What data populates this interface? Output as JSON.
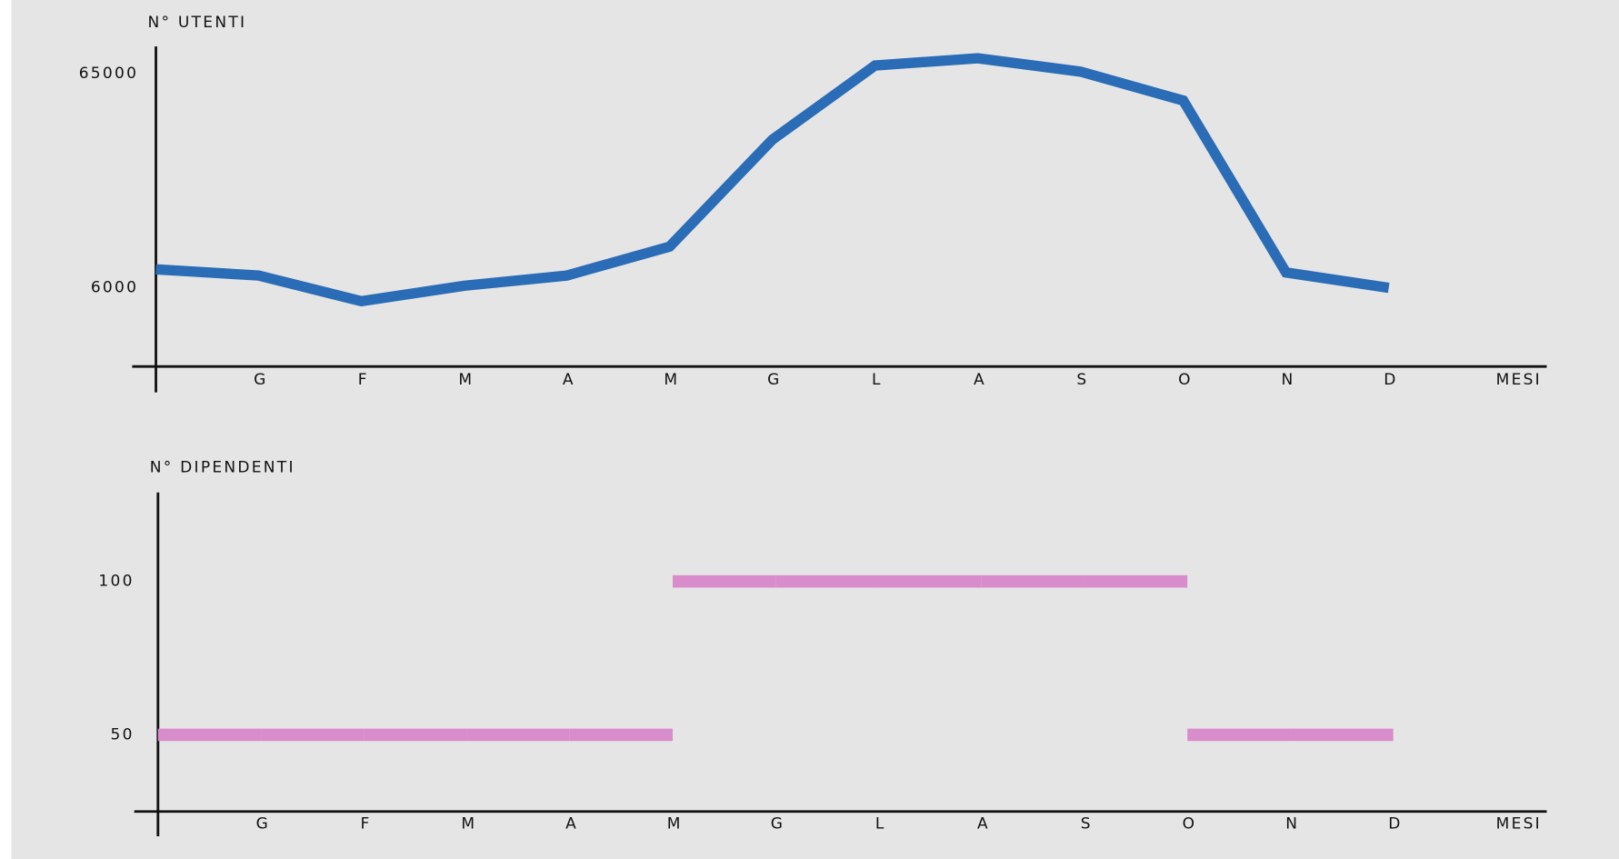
{
  "chart_data": [
    {
      "type": "line",
      "y_label": "N° UTENTI",
      "x_label": "MESI",
      "categories": [
        null,
        "G",
        "F",
        "M",
        "A",
        "M",
        "G",
        "L",
        "A",
        "S",
        "O",
        "N",
        "D"
      ],
      "values": [
        7370,
        6880,
        5170,
        6140,
        6880,
        9490,
        31200,
        71200,
        77200,
        66500,
        48200,
        7120,
        6000
      ],
      "color": "#2a6cb5",
      "log_scale": true,
      "grid": false,
      "ylim": [
        2500,
        88000
      ],
      "yticks": [
        6000,
        65000
      ]
    },
    {
      "type": "step",
      "y_label": "N° DIPENDENTI",
      "x_label": "MESI",
      "categories": [
        null,
        "G",
        "F",
        "M",
        "A",
        "M",
        "G",
        "L",
        "A",
        "S",
        "O",
        "N",
        "D"
      ],
      "values": [
        null,
        50,
        50,
        50,
        50,
        50,
        100,
        100,
        100,
        100,
        100,
        50,
        50
      ],
      "color": "#d98ccb",
      "log_scale": false,
      "grid": false,
      "ylim": [
        25,
        129
      ],
      "yticks": [
        50,
        100
      ]
    }
  ]
}
